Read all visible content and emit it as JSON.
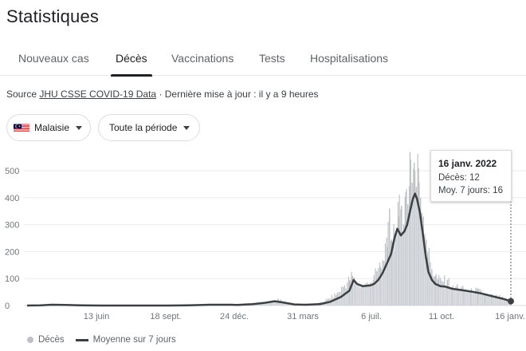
{
  "page": {
    "title": "Statistiques"
  },
  "tabs": [
    {
      "label": "Nouveaux cas",
      "active": false
    },
    {
      "label": "Décès",
      "active": true
    },
    {
      "label": "Vaccinations",
      "active": false
    },
    {
      "label": "Tests",
      "active": false
    },
    {
      "label": "Hospitalisations",
      "active": false
    }
  ],
  "source": {
    "prefix": "Source",
    "link": "JHU CSSE COVID-19 Data",
    "suffix": "· Dernière mise à jour : il y a 9 heures"
  },
  "filters": {
    "region": {
      "label": "Malaisie",
      "flag": "malaysia-flag"
    },
    "period": {
      "label": "Toute la période"
    }
  },
  "tooltip": {
    "date": "16 janv. 2022",
    "deaths_line": "Décès: 12",
    "avg_line": "Moy. 7 jours: 16"
  },
  "legend": {
    "deaths": "Décès",
    "average": "Moyenne sur 7 jours"
  },
  "colors": {
    "bars": "#bdc1c6",
    "average_line": "#3c4043",
    "active_tab": "#202124"
  },
  "chart_data": {
    "type": "bar",
    "title": "",
    "xlabel": "",
    "ylabel": "",
    "ylim": [
      0,
      580
    ],
    "yticks": [
      0,
      100,
      200,
      300,
      400,
      500
    ],
    "xticks": [
      "13 juin",
      "18 sept.",
      "24 déc.",
      "31 mars",
      "6 juil.",
      "11 oct.",
      "16 janv."
    ],
    "x_start": "2020-03-01",
    "x_end": "2022-01-16",
    "series": [
      {
        "name": "Décès",
        "type": "bar",
        "points": [
          [
            "2020-03-01",
            0
          ],
          [
            "2020-04-01",
            2
          ],
          [
            "2020-05-01",
            1
          ],
          [
            "2020-06-01",
            0
          ],
          [
            "2020-07-01",
            0
          ],
          [
            "2020-08-01",
            0
          ],
          [
            "2020-09-01",
            0
          ],
          [
            "2020-10-01",
            2
          ],
          [
            "2020-11-01",
            3
          ],
          [
            "2020-12-01",
            3
          ],
          [
            "2021-01-01",
            6
          ],
          [
            "2021-01-20",
            9
          ],
          [
            "2021-02-10",
            12
          ],
          [
            "2021-02-20",
            22
          ],
          [
            "2021-03-10",
            5
          ],
          [
            "2021-04-01",
            4
          ],
          [
            "2021-04-20",
            10
          ],
          [
            "2021-05-01",
            22
          ],
          [
            "2021-05-15",
            45
          ],
          [
            "2021-05-25",
            75
          ],
          [
            "2021-06-01",
            95
          ],
          [
            "2021-06-05",
            110
          ],
          [
            "2021-06-10",
            82
          ],
          [
            "2021-06-20",
            70
          ],
          [
            "2021-07-01",
            85
          ],
          [
            "2021-07-05",
            95
          ],
          [
            "2021-07-10",
            125
          ],
          [
            "2021-07-15",
            145
          ],
          [
            "2021-07-20",
            165
          ],
          [
            "2021-07-25",
            215
          ],
          [
            "2021-07-28",
            360
          ],
          [
            "2021-07-31",
            245
          ],
          [
            "2021-08-03",
            285
          ],
          [
            "2021-08-06",
            250
          ],
          [
            "2021-08-10",
            330
          ],
          [
            "2021-08-14",
            370
          ],
          [
            "2021-08-17",
            300
          ],
          [
            "2021-08-20",
            420
          ],
          [
            "2021-08-23",
            375
          ],
          [
            "2021-08-26",
            570
          ],
          [
            "2021-08-29",
            455
          ],
          [
            "2021-09-01",
            530
          ],
          [
            "2021-09-04",
            440
          ],
          [
            "2021-09-07",
            510
          ],
          [
            "2021-09-10",
            400
          ],
          [
            "2021-09-14",
            330
          ],
          [
            "2021-09-18",
            245
          ],
          [
            "2021-09-22",
            180
          ],
          [
            "2021-09-26",
            135
          ],
          [
            "2021-10-01",
            110
          ],
          [
            "2021-10-05",
            95
          ],
          [
            "2021-10-12",
            88
          ],
          [
            "2021-10-18",
            95
          ],
          [
            "2021-10-25",
            60
          ],
          [
            "2021-11-01",
            72
          ],
          [
            "2021-11-10",
            58
          ],
          [
            "2021-11-20",
            52
          ],
          [
            "2021-11-30",
            55
          ],
          [
            "2021-12-10",
            42
          ],
          [
            "2021-12-20",
            36
          ],
          [
            "2021-12-31",
            32
          ],
          [
            "2022-01-08",
            22
          ],
          [
            "2022-01-16",
            12
          ]
        ]
      },
      {
        "name": "Moyenne sur 7 jours",
        "type": "line",
        "points": [
          [
            "2020-03-01",
            0
          ],
          [
            "2020-03-20",
            1
          ],
          [
            "2020-04-05",
            3
          ],
          [
            "2020-04-25",
            2
          ],
          [
            "2020-05-15",
            1
          ],
          [
            "2020-06-13",
            0
          ],
          [
            "2020-08-01",
            0
          ],
          [
            "2020-09-18",
            0
          ],
          [
            "2020-10-15",
            1
          ],
          [
            "2020-11-15",
            3
          ],
          [
            "2020-12-15",
            3
          ],
          [
            "2020-12-24",
            2
          ],
          [
            "2021-01-15",
            5
          ],
          [
            "2021-02-01",
            10
          ],
          [
            "2021-02-15",
            16
          ],
          [
            "2021-02-25",
            12
          ],
          [
            "2021-03-15",
            4
          ],
          [
            "2021-03-31",
            3
          ],
          [
            "2021-04-20",
            5
          ],
          [
            "2021-05-05",
            14
          ],
          [
            "2021-05-20",
            32
          ],
          [
            "2021-06-01",
            55
          ],
          [
            "2021-06-07",
            95
          ],
          [
            "2021-06-12",
            80
          ],
          [
            "2021-06-20",
            72
          ],
          [
            "2021-07-01",
            75
          ],
          [
            "2021-07-06",
            80
          ],
          [
            "2021-07-12",
            95
          ],
          [
            "2021-07-18",
            120
          ],
          [
            "2021-07-24",
            155
          ],
          [
            "2021-07-30",
            190
          ],
          [
            "2021-08-04",
            250
          ],
          [
            "2021-08-08",
            285
          ],
          [
            "2021-08-13",
            260
          ],
          [
            "2021-08-18",
            275
          ],
          [
            "2021-08-22",
            300
          ],
          [
            "2021-08-26",
            350
          ],
          [
            "2021-08-30",
            395
          ],
          [
            "2021-09-02",
            415
          ],
          [
            "2021-09-05",
            395
          ],
          [
            "2021-09-09",
            345
          ],
          [
            "2021-09-13",
            270
          ],
          [
            "2021-09-17",
            190
          ],
          [
            "2021-09-21",
            125
          ],
          [
            "2021-09-26",
            95
          ],
          [
            "2021-10-01",
            80
          ],
          [
            "2021-10-08",
            72
          ],
          [
            "2021-10-15",
            70
          ],
          [
            "2021-10-25",
            62
          ],
          [
            "2021-11-05",
            58
          ],
          [
            "2021-11-20",
            52
          ],
          [
            "2021-12-05",
            45
          ],
          [
            "2021-12-20",
            35
          ],
          [
            "2022-01-05",
            25
          ],
          [
            "2022-01-16",
            16
          ]
        ]
      }
    ],
    "legend_position": "bottom-left",
    "grid": true
  }
}
